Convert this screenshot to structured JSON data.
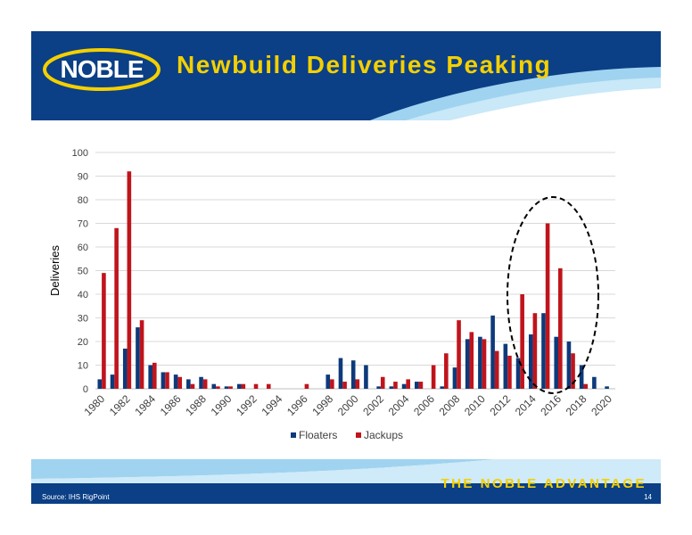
{
  "header": {
    "logo_text": "NOBLE",
    "title": "Newbuild Deliveries Peaking",
    "colors": {
      "navy": "#0b3f86",
      "accent": "#f4d000"
    }
  },
  "chart_data": {
    "type": "bar",
    "title": "",
    "xlabel": "",
    "ylabel": "Deliveries",
    "ylim": [
      0,
      100
    ],
    "yticks": [
      0,
      10,
      20,
      30,
      40,
      50,
      60,
      70,
      80,
      90,
      100
    ],
    "grid": true,
    "legend_position": "bottom",
    "categories": [
      "1980",
      "1981",
      "1982",
      "1983",
      "1984",
      "1985",
      "1986",
      "1987",
      "1988",
      "1989",
      "1990",
      "1991",
      "1992",
      "1993",
      "1994",
      "1995",
      "1996",
      "1997",
      "1998",
      "1999",
      "2000",
      "2001",
      "2002",
      "2003",
      "2004",
      "2005",
      "2006",
      "2007",
      "2008",
      "2009",
      "2010",
      "2011",
      "2012",
      "2013",
      "2014",
      "2015",
      "2016",
      "2017",
      "2018",
      "2019",
      "2020"
    ],
    "x_tick_labels": [
      "1980",
      "1982",
      "1984",
      "1986",
      "1988",
      "1990",
      "1992",
      "1994",
      "1996",
      "1998",
      "2000",
      "2002",
      "2004",
      "2006",
      "2008",
      "2010",
      "2012",
      "2014",
      "2016",
      "2018",
      "2020"
    ],
    "series": [
      {
        "name": "Floaters",
        "color": "#0d3a7a",
        "values": [
          4,
          6,
          17,
          26,
          10,
          7,
          6,
          4,
          5,
          2,
          1,
          2,
          0,
          0,
          0,
          0,
          0,
          0,
          6,
          13,
          12,
          10,
          1,
          1,
          2,
          3,
          0,
          1,
          9,
          21,
          22,
          31,
          19,
          13,
          23,
          32,
          22,
          20,
          10,
          5,
          1
        ]
      },
      {
        "name": "Jackups",
        "color": "#c0141c",
        "values": [
          49,
          68,
          92,
          29,
          11,
          7,
          5,
          2,
          4,
          1,
          1,
          2,
          2,
          2,
          0,
          0,
          2,
          0,
          4,
          3,
          4,
          0,
          5,
          3,
          4,
          3,
          10,
          15,
          29,
          24,
          21,
          16,
          14,
          40,
          32,
          70,
          51,
          15,
          2,
          0,
          0
        ]
      }
    ],
    "annotation": {
      "shape": "dashed-ellipse",
      "highlight": "2013–2018"
    }
  },
  "footer": {
    "tagline": "THE NOBLE ADVANTAGE",
    "source": "Source:   IHS RigPoint",
    "page": "14"
  }
}
